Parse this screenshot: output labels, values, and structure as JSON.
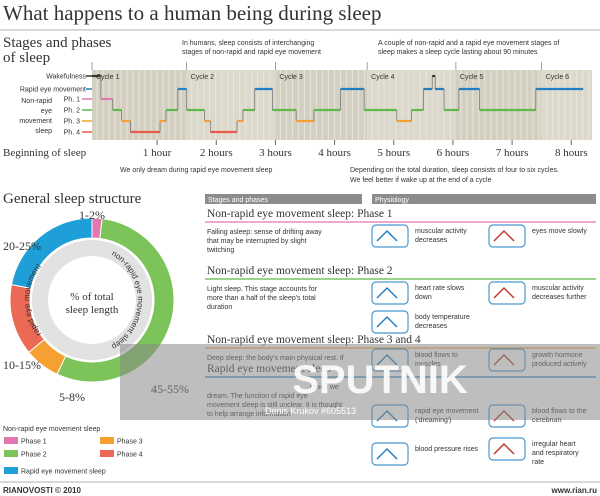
{
  "title": "What happens to a human being during sleep",
  "hypnogram": {
    "heading": [
      "Stages and phases",
      "of sleep"
    ],
    "note_left": [
      "In humans, sleep consists of interchanging",
      "stages of non-rapid and rapid eye movement"
    ],
    "note_right": [
      "A couple of non-rapid and a rapid eye movement stages of",
      "sleep makes a sleep cycle lasting about 90 minutes"
    ],
    "levels": [
      {
        "label": "Wakefulness",
        "color": "#333333"
      },
      {
        "label": "Rapid eye movement",
        "color": "#1e7fc4"
      },
      {
        "label": "Ph. 1",
        "color": "#e377b0"
      },
      {
        "label": "Ph. 2",
        "color": "#5cb94a"
      },
      {
        "label": "Ph. 3",
        "color": "#f5a030"
      },
      {
        "label": "Ph. 4",
        "color": "#e85b4b"
      }
    ],
    "nrem_label": [
      "Non-rapid",
      "eye",
      "movement",
      "sleep"
    ],
    "xlim": [
      -0.1,
      8.35
    ],
    "origin_label": "Beginning of sleep",
    "xticks": [
      {
        "value": 1,
        "label": "1 hour"
      },
      {
        "value": 2,
        "label": "2 hours"
      },
      {
        "value": 3,
        "label": "3 hours"
      },
      {
        "value": 4,
        "label": "4 hours"
      },
      {
        "value": 5,
        "label": "5 hours"
      },
      {
        "value": 6,
        "label": "6 hours"
      },
      {
        "value": 7,
        "label": "7 hours"
      },
      {
        "value": 8,
        "label": "8 hours"
      }
    ],
    "cycles": [
      {
        "label": "Cycle 1",
        "start": -0.1
      },
      {
        "label": "Cycle 2",
        "start": 1.5
      },
      {
        "label": "Cycle 3",
        "start": 3.0
      },
      {
        "label": "Cycle 4",
        "start": 4.55
      },
      {
        "label": "Cycle 5",
        "start": 6.05
      },
      {
        "label": "Cycle 6",
        "start": 7.5
      }
    ],
    "segments": [
      [
        -0.1,
        0.05,
        0
      ],
      [
        0.05,
        0.25,
        2
      ],
      [
        0.25,
        0.4,
        3
      ],
      [
        0.4,
        0.55,
        4
      ],
      [
        0.55,
        1.05,
        5
      ],
      [
        1.05,
        1.15,
        4
      ],
      [
        1.15,
        1.35,
        3
      ],
      [
        1.35,
        1.5,
        1
      ],
      [
        1.5,
        1.8,
        3
      ],
      [
        1.8,
        1.9,
        4
      ],
      [
        1.9,
        2.35,
        5
      ],
      [
        2.35,
        2.45,
        4
      ],
      [
        2.45,
        2.65,
        3
      ],
      [
        2.65,
        2.95,
        1
      ],
      [
        2.95,
        3.35,
        3
      ],
      [
        3.35,
        3.65,
        4
      ],
      [
        3.65,
        4.1,
        3
      ],
      [
        4.1,
        4.5,
        1
      ],
      [
        4.5,
        5.05,
        3
      ],
      [
        5.05,
        5.3,
        4
      ],
      [
        5.3,
        5.5,
        3
      ],
      [
        5.5,
        5.65,
        1
      ],
      [
        5.65,
        5.7,
        0
      ],
      [
        5.7,
        5.85,
        1
      ],
      [
        5.85,
        6.1,
        3
      ],
      [
        6.1,
        6.45,
        1
      ],
      [
        6.45,
        7.4,
        3
      ],
      [
        7.4,
        8.2,
        1
      ]
    ],
    "foot_left": "We only dream during rapid eye movement sleep",
    "foot_right": [
      "Depending on the total duration, sleep consists of four to six cycles.",
      "We feel better if wake up at the end of a cycle"
    ]
  },
  "structure": {
    "heading": "General sleep structure",
    "center": [
      "% of total",
      "sleep length"
    ],
    "ring_left": "rapid eye movement",
    "ring_right": "non-rapid eye movement sleep",
    "segments": [
      {
        "name": "Phase 1",
        "label": "1-2%",
        "value": 2,
        "color": "#e377b0"
      },
      {
        "name": "Phase 2",
        "label": "45-55%",
        "value": 55,
        "color": "#7cc35a"
      },
      {
        "name": "Phase 3",
        "label": "5-8%",
        "value": 7,
        "color": "#f5a030"
      },
      {
        "name": "Phase 4",
        "label": "10-15%",
        "value": 14,
        "color": "#ec6a55"
      },
      {
        "name": "Rapid eye movement sleep",
        "label": "20-25%",
        "value": 22,
        "color": "#1e9fd8"
      }
    ],
    "legend_title": "Non-rapid eye movement sleep"
  },
  "table": {
    "headers": [
      "Stages and phases",
      "Physiology"
    ],
    "sections": [
      {
        "title": "Non-rapid eye movement sleep: Phase 1",
        "color": "#e377b0",
        "text": [
          "Falling asleep: sense of drifting away",
          "that may be interrupted by slight",
          "twitching"
        ],
        "items": [
          [
            "muscular activity",
            "decreases"
          ],
          [
            "eyes move slowly"
          ]
        ]
      },
      {
        "title": "Non-rapid eye movement sleep: Phase 2",
        "color": "#5cb94a",
        "text": [
          "Light sleep. This stage accounts for",
          "more than a half of the sleep's total",
          "duration"
        ],
        "items": [
          [
            "heart rate slows",
            "down"
          ],
          [
            "muscular activity",
            "decreases further"
          ],
          [
            "body temperature",
            "decreases"
          ]
        ]
      },
      {
        "title": "Non-rapid eye movement sleep: Phase 3 and 4",
        "color": "#f5a030",
        "text": [
          "Deep sleep: the body's main physical rest. If"
        ],
        "items": [
          [
            "blood flows to",
            "muscles"
          ],
          [
            "growth hormone",
            "produced actively"
          ]
        ]
      },
      {
        "title": "Rapid eye movement sleep",
        "color": "#1e7fc4",
        "text": [
          "which we",
          "dream. The function of rapid eye",
          "movement sleep is still unclear. It is thought",
          "to help arrange information"
        ],
        "items": [
          [
            "rapid eye movement",
            "('dreaming')"
          ],
          [
            "blood flows to the",
            "cerebrum"
          ],
          [
            "blood pressure rises"
          ],
          [
            "irregular heart",
            "and respiratory",
            "rate"
          ]
        ]
      }
    ]
  },
  "watermark": {
    "brand": "SPUTNIK",
    "credit": "Denis Krukov #605513"
  },
  "footer": {
    "left": "RIANOVOSTI © 2010",
    "right": "www.rian.ru"
  }
}
